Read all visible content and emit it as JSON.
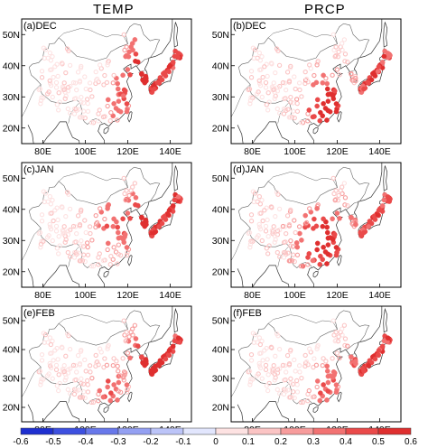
{
  "titles": {
    "left": "TEMP",
    "right": "PRCP"
  },
  "panels": [
    {
      "label": "(a)DEC"
    },
    {
      "label": "(b)DEC"
    },
    {
      "label": "(c)JAN"
    },
    {
      "label": "(d)JAN"
    },
    {
      "label": "(e)FEB"
    },
    {
      "label": "(f)FEB"
    }
  ],
  "y_ticks": [
    "50N",
    "40N",
    "30N",
    "20N"
  ],
  "x_ticks": [
    "80E",
    "100E",
    "120E",
    "140E"
  ],
  "colorbar": {
    "labels": [
      "-0.6",
      "-0.5",
      "-0.4",
      "-0.3",
      "-0.2",
      "-0.1",
      "0",
      "0.1",
      "0.2",
      "0.3",
      "0.4",
      "0.5",
      "0.6"
    ],
    "colors": [
      "#1e2fd0",
      "#3d50e0",
      "#6878ea",
      "#94a0f2",
      "#bcc4f8",
      "#e2e6fd",
      "#fde2e2",
      "#fbc4c4",
      "#f79c9c",
      "#f27272",
      "#ea4a4a",
      "#df2f2f"
    ]
  },
  "map_colors": {
    "coast": "#333333",
    "border": "#666666",
    "dot_strong": "#e23a3a",
    "dot_weak": "#f6b7b7"
  }
}
